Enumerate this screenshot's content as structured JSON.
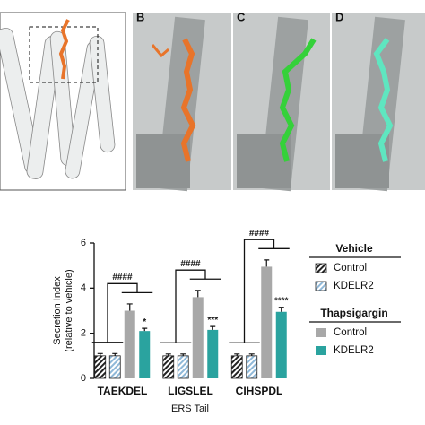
{
  "panels": {
    "labels": [
      "B",
      "C",
      "D"
    ]
  },
  "chart_data": {
    "type": "bar",
    "y_label": [
      "Secretion Index",
      "(relative to vehicle)"
    ],
    "x_label": "ERS Tail",
    "categories": [
      "TAEKDEL",
      "LIGSLEL",
      "CIHSPDL"
    ],
    "ylim": [
      0,
      6
    ],
    "yticks": [
      0,
      2,
      4,
      6
    ],
    "legend_groups": [
      "Vehicle",
      "Thapsigargin"
    ],
    "series": [
      {
        "name": "Control",
        "color": "#ffffff",
        "hatch": "#222222",
        "values": [
          1.0,
          1.0,
          1.0
        ],
        "errors": [
          0.1,
          0.08,
          0.08
        ]
      },
      {
        "name": "KDELR2",
        "color": "#ffffff",
        "hatch": "#8fb8d8",
        "values": [
          1.0,
          1.0,
          1.0
        ],
        "errors": [
          0.1,
          0.08,
          0.08
        ]
      },
      {
        "name": "Control",
        "color": "#a8a8a8",
        "values": [
          3.0,
          3.6,
          4.95
        ],
        "errors": [
          0.3,
          0.3,
          0.3
        ]
      },
      {
        "name": "KDELR2",
        "color": "#2aa39f",
        "values": [
          2.1,
          2.15,
          2.95
        ],
        "errors": [
          0.12,
          0.15,
          0.2
        ]
      }
    ],
    "annotations": {
      "comparison": [
        "####",
        "####",
        "####"
      ],
      "kdelr2": [
        "*",
        "***",
        "****"
      ]
    }
  }
}
